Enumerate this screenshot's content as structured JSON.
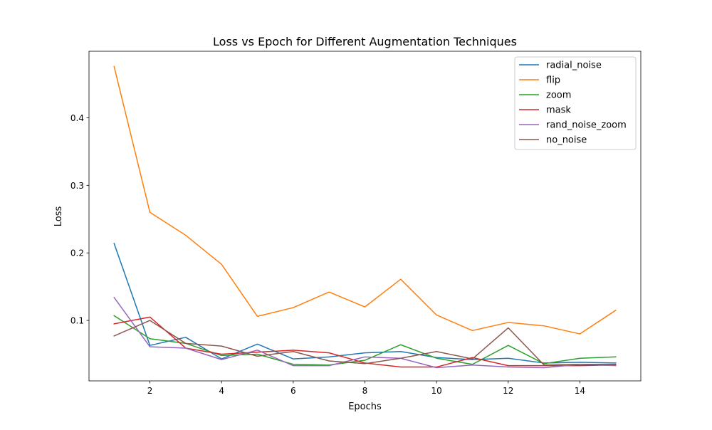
{
  "chart_data": {
    "type": "line",
    "title": "Loss vs Epoch for Different Augmentation Techniques",
    "xlabel": "Epochs",
    "ylabel": "Loss",
    "xlim": [
      0.3,
      15.7
    ],
    "ylim": [
      0.0105,
      0.4985
    ],
    "xticks": [
      2,
      4,
      6,
      8,
      10,
      12,
      14
    ],
    "yticks": [
      0.1,
      0.2,
      0.3,
      0.4
    ],
    "grid": false,
    "legend_position": "top-right",
    "x": [
      1,
      2,
      3,
      4,
      5,
      6,
      7,
      8,
      9,
      10,
      11,
      12,
      13,
      14,
      15
    ],
    "series": [
      {
        "name": "radial_noise",
        "color": "#1f77b4",
        "values": [
          0.214,
          0.063,
          0.075,
          0.043,
          0.065,
          0.043,
          0.046,
          0.052,
          0.054,
          0.045,
          0.042,
          0.044,
          0.037,
          0.038,
          0.037
        ]
      },
      {
        "name": "flip",
        "color": "#ff7f0e",
        "values": [
          0.476,
          0.26,
          0.226,
          0.183,
          0.106,
          0.119,
          0.142,
          0.12,
          0.161,
          0.108,
          0.085,
          0.097,
          0.092,
          0.08,
          0.115
        ]
      },
      {
        "name": "zoom",
        "color": "#2ca02c",
        "values": [
          0.107,
          0.073,
          0.066,
          0.048,
          0.05,
          0.035,
          0.034,
          0.041,
          0.064,
          0.044,
          0.035,
          0.063,
          0.036,
          0.044,
          0.046
        ]
      },
      {
        "name": "mask",
        "color": "#d62728",
        "values": [
          0.095,
          0.105,
          0.059,
          0.05,
          0.053,
          0.056,
          0.052,
          0.037,
          0.031,
          0.031,
          0.045,
          0.033,
          0.033,
          0.033,
          0.034
        ]
      },
      {
        "name": "rand_noise_zoom",
        "color": "#9467bd",
        "values": [
          0.134,
          0.061,
          0.059,
          0.042,
          0.056,
          0.033,
          0.033,
          0.046,
          0.044,
          0.03,
          0.034,
          0.031,
          0.03,
          0.035,
          0.033
        ]
      },
      {
        "name": "no_noise",
        "color": "#8c564b",
        "values": [
          0.077,
          0.1,
          0.066,
          0.062,
          0.047,
          0.054,
          0.04,
          0.036,
          0.044,
          0.054,
          0.043,
          0.089,
          0.034,
          0.035,
          0.035
        ]
      }
    ]
  }
}
